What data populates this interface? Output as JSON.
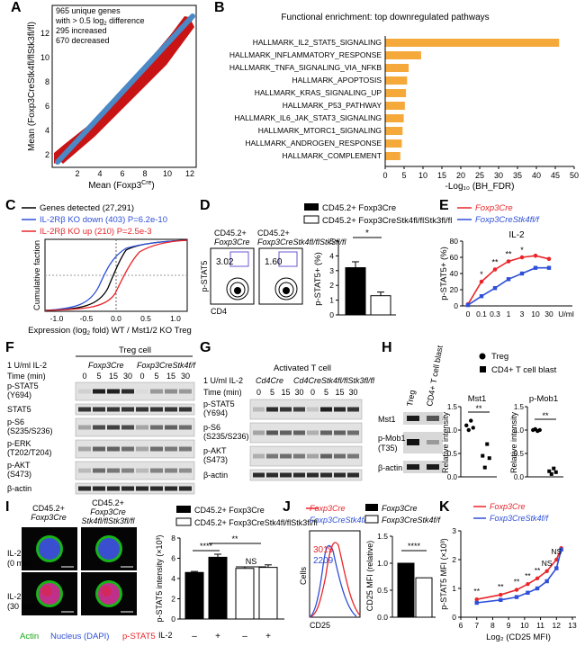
{
  "panels": {
    "a": {
      "letter": "A",
      "annotation": [
        "965 unique genes",
        "with > 0.5 log",
        " difference",
        "295 increased",
        "670 decreased"
      ],
      "xlabel": "Mean (Foxp3",
      "xlabel_sup": "Cre",
      "ylabel": "Mean (Foxp3CreStk4fl/flStk3fl/fl)",
      "ticks": [
        "2",
        "4",
        "6",
        "8",
        "10",
        "12"
      ]
    },
    "b": {
      "letter": "B",
      "title": "Functional enrichment: top downregulated pathways"
    },
    "c": {
      "letter": "C",
      "legend": [
        "Genes detected (27,291)",
        "IL-2Rβ KO down (403) P=6.2e-10",
        "IL-2Rβ KO up (210) P=2.5e-3"
      ],
      "ylabel": "Cumulative faction",
      "xlabel1": "Expression (log",
      "xlabel2": " fold) WT / Mst1/2 KO Treg",
      "xticks": [
        "-1.0",
        "-0.5",
        "0.0",
        "0.5",
        "1.0"
      ]
    },
    "d": {
      "letter": "D",
      "legend": [
        "CD45.2+ Foxp3Cre",
        "CD45.2+ Foxp3CreStk4fl/flStk3fl/fl"
      ],
      "col1": [
        "CD45.2+",
        "Foxp3Cre"
      ],
      "col2": [
        "CD45.2+",
        "Foxp3CreStk4fl/flStk3fl/fl"
      ],
      "gate": [
        "3.02",
        "1.60"
      ],
      "yaxis": "p-STAT5",
      "xaxis": "CD4",
      "bar_ylabel": "p-STAT5+ (%)",
      "yticks": [
        "0",
        "1",
        "2",
        "3",
        "4",
        "5"
      ],
      "sig": "*"
    },
    "e": {
      "letter": "E",
      "legend": [
        "Foxp3Cre",
        "Foxp3CreStk4fl/f"
      ],
      "title": "IL-2",
      "ylabel": "p-STAT5+ (%)",
      "xticks": [
        "0",
        "0.1",
        "0.3",
        "1",
        "3",
        "10",
        "30",
        "U/ml"
      ],
      "yticks": [
        "0",
        "20",
        "40",
        "60",
        "80"
      ],
      "sig": [
        "*",
        "**",
        "**",
        "*"
      ]
    },
    "f": {
      "letter": "F",
      "header": "Treg cell",
      "cond": "1 U/ml IL-2",
      "time_label": "Time (min)",
      "groups": [
        "Foxp3Cre",
        "Foxp3CreStk4f/f"
      ],
      "times": [
        "0",
        "5",
        "15",
        "30",
        "0",
        "5",
        "15",
        "30"
      ],
      "rows": [
        "p-STAT5",
        "(Y694)",
        "STAT5",
        "p-S6",
        "(S235/S236)",
        "p-ERK",
        "(T202/T204)",
        "p-AKT",
        "(S473)",
        "β-actin"
      ]
    },
    "g": {
      "letter": "G",
      "header": "Activated T cell",
      "cond": "1 U/ml IL-2",
      "time_label": "Time (min)",
      "groups": [
        "Cd4Cre",
        "Cd4CreStk4fl/flStk3fl/fl"
      ],
      "times": [
        "0",
        "5",
        "15",
        "30",
        "0",
        "5",
        "15",
        "30"
      ],
      "rows": [
        "p-STAT5",
        "(Y694)",
        "p-S6",
        "(S235/S236)",
        "p-AKT",
        "(S473)",
        "β-actin"
      ]
    },
    "h": {
      "letter": "H",
      "legend": [
        "Treg",
        "CD4+ T cell blast"
      ],
      "lanes": [
        "Treg",
        "CD4+ T cell blast"
      ],
      "rows": [
        "Mst1",
        "p-Mob1",
        "(T35)",
        "β-actin"
      ],
      "titles": [
        "Mst1",
        "p-Mob1"
      ],
      "ylabel": "Relative intensity",
      "sig": [
        "**",
        "**"
      ],
      "yticks": [
        "0.0",
        "0.5",
        "1.0",
        "1.5"
      ]
    },
    "i": {
      "letter": "I",
      "col1": [
        "CD45.2+",
        "Foxp3Cre"
      ],
      "col2": [
        "CD45.2+",
        "Foxp3Cre",
        "Stk4fl/flStk3fl/fl"
      ],
      "rows": [
        "IL-2",
        "(0 min)",
        "IL-2",
        "(30 min)"
      ],
      "stain": [
        "Actin",
        "Nucleus (DAPI)",
        "p-STAT5"
      ],
      "legend": [
        "CD45.2+ Foxp3Cre",
        "CD45.2+ Foxp3CreStk4fl/flStk3fl/fl"
      ],
      "ylabel": "p-STAT5 intensity (×10³)",
      "il2": "IL-2",
      "pm": [
        "–",
        "+",
        "–",
        "+"
      ],
      "sig": [
        "****",
        "**",
        "NS"
      ],
      "yticks": [
        "0",
        "2",
        "4",
        "6",
        "8"
      ]
    },
    "j": {
      "letter": "J",
      "legend": [
        "Foxp3Cre",
        "Foxp3CreStk4f/f",
        "Foxp3Cre",
        "Foxp3CreStk4f/f"
      ],
      "mfi": [
        "3019",
        "2209"
      ],
      "xlabel": "CD25",
      "ylabel": "Cells",
      "bar_ylabel": "CD25 MFI (relative)",
      "sig": "****",
      "yticks": [
        "0.0",
        "0.5",
        "1.0",
        "1.5"
      ]
    },
    "k": {
      "letter": "K",
      "legend": [
        "Foxp3Cre",
        "Foxp3CreStk4f/f"
      ],
      "ylabel": "p-STAT5 MFI (×10³)",
      "xlabel": "Log₂ (CD25 MFI)",
      "xticks": [
        "6",
        "7",
        "8",
        "9",
        "10",
        "11",
        "12",
        "13"
      ],
      "yticks": [
        "0",
        "1",
        "2",
        "3"
      ],
      "sig": [
        "**",
        "**",
        "**",
        "**",
        "**",
        "NS",
        "NS"
      ]
    }
  },
  "chart_data": [
    {
      "panel": "B",
      "type": "bar",
      "orientation": "horizontal",
      "title": "Functional enrichment: top downregulated pathways",
      "categories": [
        "HALLMARK_IL2_STAT5_SIGNALING",
        "HALLMARK_INFLAMMATORY_RESPONSE",
        "HALLMARK_TNFA_SIGNALING_VIA_NFKB",
        "HALLMARK_APOPTOSIS",
        "HALLMARK_KRAS_SIGNALING_UP",
        "HALLMARK_P53_PATHWAY",
        "HALLMARK_IL6_JAK_STAT3_SIGNALING",
        "HALLMARK_MTORC1_SIGNALING",
        "HALLMARK_ANDROGEN_RESPONSE",
        "HALLMARK_COMPLEMENT"
      ],
      "values": [
        46,
        9.5,
        6.2,
        5.8,
        5.5,
        5.2,
        4.9,
        4.6,
        4.4,
        4.0
      ],
      "xlabel": "-Log₁₀ (BH_FDR)",
      "xticks": [
        "0",
        "5",
        "10",
        "15",
        "20",
        "25",
        "30",
        "35",
        "40",
        "45",
        "50"
      ],
      "xlim": [
        0,
        50
      ],
      "color": "#f5a93b"
    },
    {
      "panel": "D",
      "type": "bar",
      "categories": [
        "Foxp3Cre",
        "Foxp3CreStk4fl/flStk3fl/fl"
      ],
      "values": [
        3.2,
        1.3
      ],
      "errors": [
        0.4,
        0.25
      ],
      "ylim": [
        0,
        5
      ]
    },
    {
      "panel": "E",
      "type": "line",
      "x": [
        0,
        0.1,
        0.3,
        1,
        3,
        10,
        30
      ],
      "series": [
        {
          "name": "Foxp3Cre",
          "values": [
            2,
            30,
            45,
            55,
            60,
            62,
            58
          ],
          "color": "#e8262a"
        },
        {
          "name": "Foxp3CreStk4fl/f",
          "values": [
            1,
            12,
            22,
            33,
            40,
            47,
            47
          ],
          "color": "#2e4fd8"
        }
      ],
      "ylim": [
        0,
        80
      ]
    },
    {
      "panel": "H",
      "type": "scatter",
      "series": [
        {
          "name": "Mst1",
          "treg": [
            1.1,
            1.0,
            1.2,
            1.05
          ],
          "blast": [
            0.45,
            0.2,
            0.7,
            0.4
          ]
        },
        {
          "name": "p-Mob1",
          "treg": [
            1.0,
            1.02,
            0.98,
            1.0
          ],
          "blast": [
            0.12,
            0.06,
            0.18,
            0.1
          ]
        }
      ],
      "ylim": [
        0,
        1.5
      ]
    },
    {
      "panel": "I",
      "type": "bar",
      "categories": [
        "Foxp3Cre –",
        "Foxp3Cre +",
        "KO –",
        "KO +"
      ],
      "values": [
        4.6,
        6.1,
        5.0,
        5.1
      ],
      "errors": [
        0.1,
        0.3,
        0.15,
        0.25
      ],
      "ylim": [
        0,
        8
      ]
    },
    {
      "panel": "J",
      "type": "bar",
      "categories": [
        "Foxp3Cre",
        "Foxp3CreStk4f/f"
      ],
      "values": [
        1.0,
        0.73
      ],
      "ylim": [
        0,
        1.5
      ]
    },
    {
      "panel": "K",
      "type": "line",
      "x": [
        7,
        8.5,
        9.5,
        10.2,
        10.8,
        11.4,
        12.0,
        12.3
      ],
      "series": [
        {
          "name": "Foxp3Cre",
          "values": [
            0.62,
            0.78,
            0.95,
            1.15,
            1.35,
            1.6,
            2.0,
            2.4
          ],
          "color": "#e8262a"
        },
        {
          "name": "Foxp3CreStk4f/f",
          "values": [
            0.5,
            0.6,
            0.7,
            0.85,
            1.0,
            1.25,
            1.7,
            2.35
          ],
          "color": "#2e4fd8"
        }
      ],
      "ylim": [
        0,
        3
      ],
      "xlim": [
        6,
        13
      ]
    }
  ]
}
